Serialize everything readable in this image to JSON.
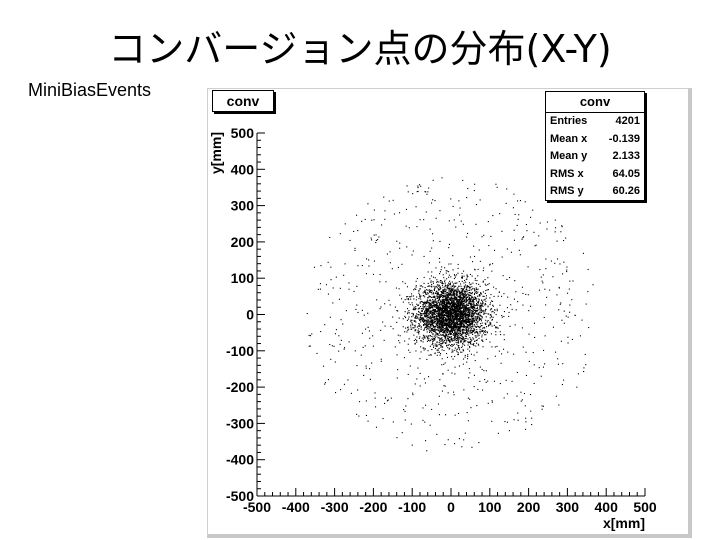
{
  "slide": {
    "title": "コンバージョン点の分布(X-Y)",
    "subtitle": "MiniBiasEvents"
  },
  "histogram": {
    "name": "conv",
    "stats_title": "conv",
    "stats": [
      {
        "label": "Entries",
        "value": "4201"
      },
      {
        "label": "Mean x",
        "value": "-0.139"
      },
      {
        "label": "Mean y",
        "value": "2.133"
      },
      {
        "label": "RMS x",
        "value": "64.05"
      },
      {
        "label": "RMS y",
        "value": "60.26"
      }
    ]
  },
  "chart_data": {
    "type": "scatter",
    "title": "conv",
    "xlabel": "x[mm]",
    "ylabel": "y[mm]",
    "xlim": [
      -500,
      500
    ],
    "ylim": [
      -500,
      500
    ],
    "xticks": [
      -500,
      -400,
      -300,
      -200,
      -100,
      0,
      100,
      200,
      300,
      400,
      500
    ],
    "yticks": [
      -500,
      -400,
      -300,
      -200,
      -100,
      0,
      100,
      200,
      300,
      400,
      500
    ],
    "grid": false,
    "entries": 4201,
    "mean_x": -0.139,
    "mean_y": 2.133,
    "rms_x": 64.05,
    "rms_y": 60.26,
    "core_radius": 50,
    "halo_radius": 380,
    "core_fraction": 0.85,
    "point_color": "#000000"
  }
}
